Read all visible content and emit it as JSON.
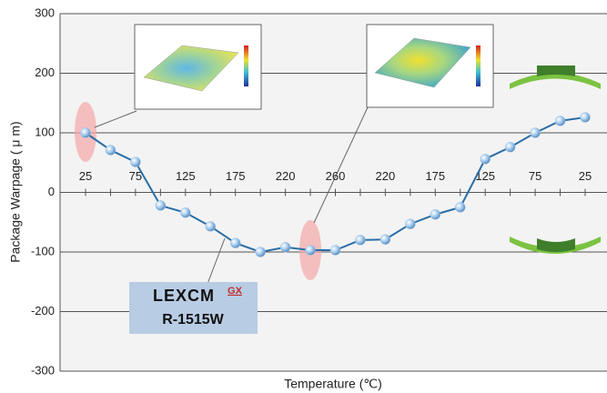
{
  "chart_data": {
    "type": "line",
    "y_label": "Package Warpage ( μ m)",
    "x_label": "Temperature (℃)",
    "categories": [
      "25",
      null,
      "75",
      null,
      "125",
      null,
      "175",
      null,
      "220",
      null,
      "260",
      null,
      "220",
      null,
      "175",
      null,
      "125",
      null,
      "75",
      null,
      "25"
    ],
    "values": [
      100,
      71,
      51,
      -22,
      -34,
      -57,
      -85,
      -100,
      -92,
      -97,
      -97,
      -80,
      -79,
      -53,
      -37,
      -25,
      56,
      76,
      100,
      120,
      126
    ],
    "color": "#2a6ea6",
    "marker_color": "#9cc3e8",
    "ylim": [
      -300,
      300
    ],
    "yticks": [
      300,
      200,
      100,
      0,
      -100,
      -200,
      -300
    ],
    "grid": true,
    "product_brand": "LEXCM",
    "product_suffix": "GX",
    "product_model": "R-1515W"
  }
}
